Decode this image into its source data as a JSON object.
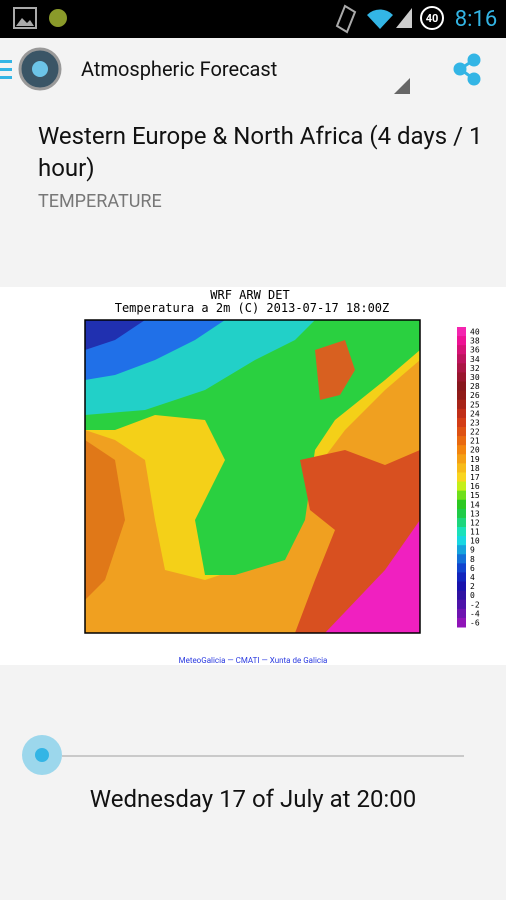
{
  "status_bar": {
    "battery": "40",
    "time": "8:16"
  },
  "app_bar": {
    "title": "Atmospheric Forecast"
  },
  "header": {
    "title": "Western Europe & North Africa (4 days / 1 hour)",
    "subtitle": "TEMPERATURE"
  },
  "map": {
    "title": "WRF ARW DET",
    "subtitle": "Temperatura a 2m (C) 2013-07-17 18:00Z",
    "scale_labels": [
      "40",
      "38",
      "36",
      "34",
      "32",
      "30",
      "28",
      "26",
      "25",
      "24",
      "23",
      "22",
      "21",
      "20",
      "19",
      "18",
      "17",
      "16",
      "15",
      "14",
      "13",
      "12",
      "11",
      "10",
      "9",
      "8",
      "6",
      "4",
      "2",
      "0",
      "-2",
      "-4",
      "-6"
    ],
    "credit": "MeteoGalicia — CMATI — Xunta de Galicia"
  },
  "slider": {
    "date": "Wednesday 17 of July at 20:00"
  }
}
